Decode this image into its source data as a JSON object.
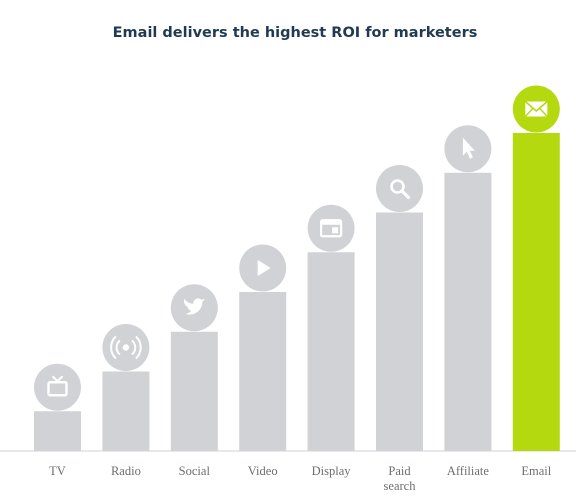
{
  "chart_data": {
    "type": "bar",
    "title": "Email delivers the highest ROI for marketers",
    "xlabel": "",
    "ylabel": "",
    "ylim": [
      0,
      8
    ],
    "grid": false,
    "legend": "none",
    "categories": [
      "TV",
      "Radio",
      "Social",
      "Video",
      "Display",
      "Paid search",
      "Affiliate",
      "Email"
    ],
    "category_lines": [
      [
        "TV"
      ],
      [
        "Radio"
      ],
      [
        "Social"
      ],
      [
        "Video"
      ],
      [
        "Display"
      ],
      [
        "Paid",
        "search"
      ],
      [
        "Affiliate"
      ],
      [
        "Email"
      ]
    ],
    "values": [
      1,
      2,
      3,
      4,
      5,
      6,
      7,
      8
    ],
    "icons": [
      "tv-icon",
      "radio-icon",
      "twitter-icon",
      "play-icon",
      "display-window-icon",
      "search-icon",
      "cursor-icon",
      "envelope-icon"
    ],
    "colors": {
      "bar": "#d0d2d6",
      "bar_highlight": "#b5d90f",
      "icon_circle": "#d0d2d6",
      "icon_circle_highlight": "#b5d90f",
      "icon_glyph": "#ffffff",
      "axis": "#cfd1d4",
      "title": "#1f3a52",
      "label": "#6e6e6e"
    },
    "highlight_index": 7
  }
}
